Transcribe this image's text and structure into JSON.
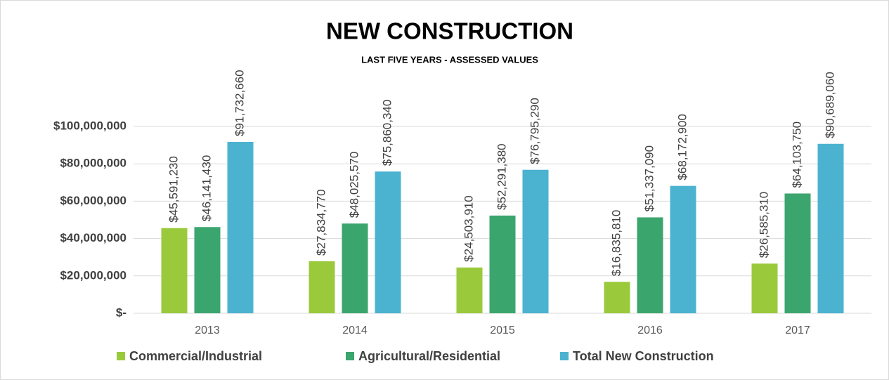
{
  "chart_data": {
    "type": "bar",
    "title": "NEW CONSTRUCTION",
    "subtitle": "LAST FIVE YEARS - ASSESSED VALUES",
    "categories": [
      "2013",
      "2014",
      "2015",
      "2016",
      "2017"
    ],
    "series": [
      {
        "name": "Commercial/Industrial",
        "color": "#9aca3c",
        "values": [
          45591230,
          27834770,
          24503910,
          16835810,
          26585310
        ],
        "value_labels": [
          "$45,591,230",
          "$27,834,770",
          "$24,503,910",
          "$16,835,810",
          "$26,585,310"
        ]
      },
      {
        "name": "Agricultural/Residential",
        "color": "#3ba56e",
        "values": [
          46141430,
          48025570,
          52291380,
          51337090,
          64103750
        ],
        "value_labels": [
          "$46,141,430",
          "$48,025,570",
          "$52,291,380",
          "$51,337,090",
          "$64,103,750"
        ]
      },
      {
        "name": "Total New Construction",
        "color": "#4bb3d0",
        "values": [
          91732660,
          75860340,
          76795290,
          68172900,
          90689060
        ],
        "value_labels": [
          "$91,732,660",
          "$75,860,340",
          "$76,795,290",
          "$68,172,900",
          "$90,689,060"
        ]
      }
    ],
    "ylim": [
      0,
      100000000
    ],
    "yticks": [
      {
        "value": 0,
        "label": "$-"
      },
      {
        "value": 20000000,
        "label": "$20,000,000"
      },
      {
        "value": 40000000,
        "label": "$40,000,000"
      },
      {
        "value": 60000000,
        "label": "$60,000,000"
      },
      {
        "value": 80000000,
        "label": "$80,000,000"
      },
      {
        "value": 100000000,
        "label": "$100,000,000"
      }
    ],
    "grid": true,
    "legend": "bottom"
  }
}
